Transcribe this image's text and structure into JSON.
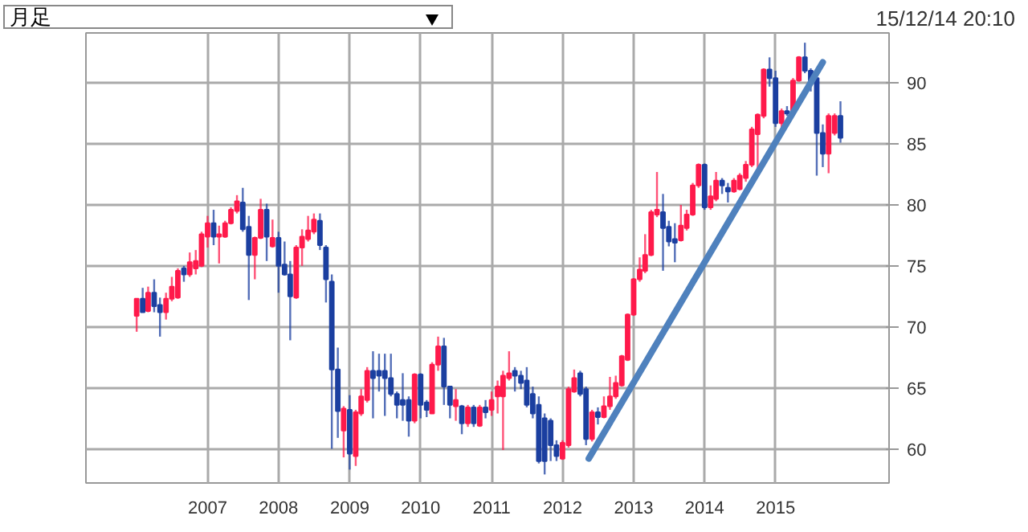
{
  "chart_data": {
    "type": "candlestick",
    "annotations": [
      "月足",
      "15/12/14 20:10"
    ],
    "x": [
      "2006-01",
      "2006-02",
      "2006-03",
      "2006-04",
      "2006-05",
      "2006-06",
      "2006-07",
      "2006-08",
      "2006-09",
      "2006-10",
      "2006-11",
      "2006-12",
      "2007-01",
      "2007-02",
      "2007-03",
      "2007-04",
      "2007-05",
      "2007-06",
      "2007-07",
      "2007-08",
      "2007-09",
      "2007-10",
      "2007-11",
      "2007-12",
      "2008-01",
      "2008-02",
      "2008-03",
      "2008-04",
      "2008-05",
      "2008-06",
      "2008-07",
      "2008-08",
      "2008-09",
      "2008-10",
      "2008-11",
      "2008-12",
      "2009-01",
      "2009-02",
      "2009-03",
      "2009-04",
      "2009-05",
      "2009-06",
      "2009-07",
      "2009-08",
      "2009-09",
      "2009-10",
      "2009-11",
      "2009-12",
      "2010-01",
      "2010-02",
      "2010-03",
      "2010-04",
      "2010-05",
      "2010-06",
      "2010-07",
      "2010-08",
      "2010-09",
      "2010-10",
      "2010-11",
      "2010-12",
      "2011-01",
      "2011-02",
      "2011-03",
      "2011-04",
      "2011-05",
      "2011-06",
      "2011-07",
      "2011-08",
      "2011-09",
      "2011-10",
      "2011-11",
      "2011-12",
      "2012-01",
      "2012-02",
      "2012-03",
      "2012-04",
      "2012-05",
      "2012-06",
      "2012-07",
      "2012-08",
      "2012-09",
      "2012-10",
      "2012-11",
      "2012-12",
      "2013-01",
      "2013-02",
      "2013-03",
      "2013-04",
      "2013-05",
      "2013-06",
      "2013-07",
      "2013-08",
      "2013-09",
      "2013-10",
      "2013-11",
      "2013-12",
      "2014-01",
      "2014-02",
      "2014-03",
      "2014-04",
      "2014-05",
      "2014-06",
      "2014-07",
      "2014-08",
      "2014-09",
      "2014-10",
      "2014-11",
      "2014-12",
      "2015-01",
      "2015-02",
      "2015-03",
      "2015-04",
      "2015-05",
      "2015-06",
      "2015-07",
      "2015-08",
      "2015-09",
      "2015-10",
      "2015-11",
      "2015-12"
    ],
    "ohlc": [
      [
        70.9,
        72.3,
        69.6,
        72.3
      ],
      [
        72.3,
        73.2,
        71.2,
        71.2
      ],
      [
        71.3,
        73.3,
        71.2,
        72.8
      ],
      [
        72.8,
        73.9,
        71.2,
        71.7
      ],
      [
        71.8,
        72.4,
        69.2,
        71.2
      ],
      [
        71.2,
        72.8,
        70.6,
        72.3
      ],
      [
        72.3,
        74.1,
        72.1,
        73.3
      ],
      [
        72.4,
        74.8,
        72.3,
        74.6
      ],
      [
        74.8,
        75.0,
        73.7,
        74.3
      ],
      [
        74.3,
        76.1,
        74.1,
        75.3
      ],
      [
        74.8,
        76.3,
        74.3,
        75.4
      ],
      [
        75.0,
        77.8,
        74.9,
        77.6
      ],
      [
        77.4,
        79.1,
        76.5,
        78.5
      ],
      [
        78.5,
        79.6,
        76.7,
        77.4
      ],
      [
        77.4,
        78.3,
        75.2,
        77.6
      ],
      [
        77.4,
        78.7,
        77.3,
        78.5
      ],
      [
        78.5,
        79.8,
        78.4,
        79.6
      ],
      [
        79.5,
        80.8,
        79.3,
        80.3
      ],
      [
        80.2,
        81.4,
        77.8,
        78.0
      ],
      [
        78.2,
        79.1,
        72.2,
        75.9
      ],
      [
        75.9,
        77.4,
        73.9,
        77.3
      ],
      [
        77.3,
        80.5,
        77.2,
        79.6
      ],
      [
        79.6,
        80.1,
        75.4,
        77.4
      ],
      [
        76.6,
        78.8,
        76.5,
        77.3
      ],
      [
        77.3,
        77.8,
        72.8,
        75.0
      ],
      [
        75.1,
        77.0,
        74.2,
        74.3
      ],
      [
        74.3,
        75.4,
        68.9,
        72.5
      ],
      [
        72.4,
        76.7,
        72.3,
        76.5
      ],
      [
        76.5,
        78.0,
        75.0,
        77.4
      ],
      [
        77.2,
        79.1,
        77.0,
        77.9
      ],
      [
        77.8,
        79.3,
        77.6,
        78.8
      ],
      [
        78.7,
        79.3,
        76.3,
        76.7
      ],
      [
        76.5,
        76.7,
        72.0,
        73.9
      ],
      [
        73.7,
        74.3,
        60.0,
        66.5
      ],
      [
        66.5,
        68.3,
        60.9,
        63.1
      ],
      [
        61.5,
        63.5,
        59.3,
        63.3
      ],
      [
        63.2,
        64.4,
        58.3,
        59.6
      ],
      [
        59.4,
        63.2,
        58.6,
        63.0
      ],
      [
        62.9,
        64.9,
        62.7,
        64.3
      ],
      [
        64.0,
        66.7,
        63.8,
        66.4
      ],
      [
        66.4,
        68.0,
        62.5,
        65.8
      ],
      [
        66.4,
        67.8,
        64.7,
        66.0
      ],
      [
        66.4,
        67.8,
        62.7,
        65.8
      ],
      [
        65.8,
        67.8,
        64.3,
        64.5
      ],
      [
        64.5,
        64.7,
        62.5,
        63.6
      ],
      [
        64.0,
        66.2,
        62.3,
        63.6
      ],
      [
        64.0,
        64.3,
        61.0,
        62.3
      ],
      [
        62.3,
        66.2,
        62.1,
        66.1
      ],
      [
        66.1,
        66.2,
        62.5,
        63.6
      ],
      [
        63.8,
        64.0,
        62.6,
        63.2
      ],
      [
        62.9,
        67.1,
        62.9,
        66.9
      ],
      [
        66.9,
        69.2,
        66.4,
        68.4
      ],
      [
        68.4,
        69.1,
        63.6,
        65.1
      ],
      [
        65.1,
        65.1,
        62.5,
        63.6
      ],
      [
        63.5,
        64.9,
        62.3,
        64.0
      ],
      [
        63.5,
        63.6,
        61.2,
        62.1
      ],
      [
        62.1,
        63.6,
        61.8,
        63.4
      ],
      [
        63.4,
        63.6,
        61.8,
        62.1
      ],
      [
        61.9,
        63.6,
        61.8,
        63.4
      ],
      [
        63.4,
        64.0,
        62.5,
        63.0
      ],
      [
        63.2,
        64.7,
        62.7,
        64.0
      ],
      [
        64.3,
        65.6,
        62.9,
        65.1
      ],
      [
        64.3,
        66.4,
        59.9,
        66.0
      ],
      [
        65.8,
        68.0,
        65.6,
        66.2
      ],
      [
        66.4,
        66.7,
        64.7,
        66.0
      ],
      [
        66.0,
        66.4,
        64.9,
        65.4
      ],
      [
        65.6,
        66.7,
        63.4,
        63.6
      ],
      [
        64.5,
        65.1,
        62.5,
        62.9
      ],
      [
        63.6,
        64.3,
        58.8,
        59.0
      ],
      [
        62.5,
        62.9,
        57.9,
        59.0
      ],
      [
        62.3,
        62.5,
        59.0,
        60.3
      ],
      [
        60.3,
        60.7,
        59.0,
        59.4
      ],
      [
        59.2,
        60.7,
        59.1,
        60.5
      ],
      [
        60.3,
        65.1,
        60.1,
        64.9
      ],
      [
        64.7,
        66.5,
        64.6,
        65.8
      ],
      [
        66.2,
        66.4,
        64.3,
        64.5
      ],
      [
        64.9,
        65.1,
        60.3,
        60.8
      ],
      [
        60.8,
        63.2,
        60.6,
        63.0
      ],
      [
        63.0,
        63.4,
        62.0,
        62.6
      ],
      [
        62.6,
        64.3,
        62.5,
        63.5
      ],
      [
        63.5,
        65.9,
        63.2,
        64.3
      ],
      [
        64.3,
        66.0,
        64.1,
        65.4
      ],
      [
        65.2,
        67.7,
        65.1,
        67.6
      ],
      [
        67.3,
        71.1,
        67.2,
        71.0
      ],
      [
        71.0,
        74.0,
        70.9,
        73.9
      ],
      [
        73.9,
        75.7,
        73.7,
        74.7
      ],
      [
        74.6,
        77.6,
        74.4,
        75.9
      ],
      [
        75.9,
        79.6,
        75.8,
        79.4
      ],
      [
        79.2,
        82.7,
        79.0,
        79.6
      ],
      [
        79.4,
        80.9,
        74.6,
        78.1
      ],
      [
        78.2,
        78.7,
        76.6,
        77.0
      ],
      [
        77.2,
        78.5,
        75.3,
        76.9
      ],
      [
        77.1,
        80.0,
        77.0,
        78.3
      ],
      [
        78.1,
        79.6,
        77.9,
        79.2
      ],
      [
        79.2,
        81.8,
        79.1,
        81.6
      ],
      [
        81.6,
        83.4,
        81.4,
        83.3
      ],
      [
        83.3,
        83.4,
        79.6,
        79.8
      ],
      [
        79.8,
        81.6,
        79.6,
        80.7
      ],
      [
        80.5,
        82.7,
        80.3,
        82.0
      ],
      [
        82.0,
        82.2,
        80.9,
        81.6
      ],
      [
        81.4,
        81.8,
        80.2,
        81.1
      ],
      [
        81.1,
        82.2,
        81.0,
        82.0
      ],
      [
        81.3,
        82.6,
        81.2,
        82.4
      ],
      [
        82.2,
        83.6,
        81.9,
        83.3
      ],
      [
        83.3,
        86.4,
        83.1,
        86.2
      ],
      [
        85.8,
        87.5,
        82.9,
        87.4
      ],
      [
        87.3,
        91.2,
        87.1,
        91.1
      ],
      [
        91.1,
        92.1,
        89.7,
        90.4
      ],
      [
        90.4,
        91.0,
        86.4,
        86.7
      ],
      [
        86.7,
        87.9,
        86.2,
        87.7
      ],
      [
        87.7,
        88.1,
        87.3,
        87.5
      ],
      [
        87.5,
        90.4,
        87.4,
        90.2
      ],
      [
        90.2,
        92.2,
        90.1,
        92.1
      ],
      [
        92.1,
        93.3,
        90.8,
        91.0
      ],
      [
        91.0,
        91.2,
        89.3,
        90.2
      ],
      [
        90.4,
        90.5,
        82.4,
        85.9
      ],
      [
        85.9,
        86.6,
        83.1,
        84.2
      ],
      [
        84.2,
        87.5,
        82.6,
        87.3
      ],
      [
        85.9,
        87.5,
        85.7,
        87.3
      ],
      [
        87.3,
        88.5,
        85.1,
        85.5
      ]
    ],
    "colors": [
      "#ff1a4b",
      "#1b3fa0",
      "#ff1a4b",
      "#1b3fa0",
      "#1b3fa0",
      "#ff1a4b",
      "#ff1a4b",
      "#ff1a4b",
      "#1b3fa0",
      "#ff1a4b",
      "#ff1a4b",
      "#ff1a4b",
      "#ff1a4b",
      "#1b3fa0",
      "#ff1a4b",
      "#ff1a4b",
      "#ff1a4b",
      "#ff1a4b",
      "#1b3fa0",
      "#1b3fa0",
      "#ff1a4b",
      "#ff1a4b",
      "#1b3fa0",
      "#ff1a4b",
      "#1b3fa0",
      "#1b3fa0",
      "#1b3fa0",
      "#ff1a4b",
      "#ff1a4b",
      "#ff1a4b",
      "#ff1a4b",
      "#1b3fa0",
      "#1b3fa0",
      "#1b3fa0",
      "#1b3fa0",
      "#ff1a4b",
      "#1b3fa0",
      "#ff1a4b",
      "#ff1a4b",
      "#ff1a4b",
      "#1b3fa0",
      "#1b3fa0",
      "#1b3fa0",
      "#1b3fa0",
      "#1b3fa0",
      "#1b3fa0",
      "#1b3fa0",
      "#ff1a4b",
      "#1b3fa0",
      "#1b3fa0",
      "#ff1a4b",
      "#ff1a4b",
      "#1b3fa0",
      "#1b3fa0",
      "#ff1a4b",
      "#1b3fa0",
      "#ff1a4b",
      "#1b3fa0",
      "#ff1a4b",
      "#1b3fa0",
      "#ff1a4b",
      "#ff1a4b",
      "#ff1a4b",
      "#ff1a4b",
      "#1b3fa0",
      "#1b3fa0",
      "#1b3fa0",
      "#1b3fa0",
      "#1b3fa0",
      "#1b3fa0",
      "#1b3fa0",
      "#1b3fa0",
      "#ff1a4b",
      "#ff1a4b",
      "#ff1a4b",
      "#1b3fa0",
      "#1b3fa0",
      "#ff1a4b",
      "#1b3fa0",
      "#ff1a4b",
      "#ff1a4b",
      "#ff1a4b",
      "#ff1a4b",
      "#ff1a4b",
      "#ff1a4b",
      "#ff1a4b",
      "#ff1a4b",
      "#ff1a4b",
      "#ff1a4b",
      "#1b3fa0",
      "#1b3fa0",
      "#1b3fa0",
      "#ff1a4b",
      "#ff1a4b",
      "#ff1a4b",
      "#ff1a4b",
      "#1b3fa0",
      "#ff1a4b",
      "#ff1a4b",
      "#1b3fa0",
      "#1b3fa0",
      "#ff1a4b",
      "#ff1a4b",
      "#ff1a4b",
      "#ff1a4b",
      "#ff1a4b",
      "#ff1a4b",
      "#1b3fa0",
      "#1b3fa0",
      "#ff1a4b",
      "#1b3fa0",
      "#ff1a4b",
      "#ff1a4b",
      "#1b3fa0",
      "#1b3fa0",
      "#1b3fa0",
      "#1b3fa0",
      "#ff1a4b",
      "#ff1a4b",
      "#1b3fa0"
    ],
    "series": [
      {
        "type": "line",
        "x": [
          "2012-05-15",
          "2015-09-01"
        ],
        "values": [
          59.2,
          91.7
        ],
        "color": "#4f81bd"
      }
    ],
    "xlim": [
      "2005-04-15",
      "2016-08-07"
    ],
    "xticks": [
      {
        "value": "2007-01-01",
        "label": "2007"
      },
      {
        "value": "2008-01-01",
        "label": "2008"
      },
      {
        "value": "2009-01-01",
        "label": "2009"
      },
      {
        "value": "2010-01-01",
        "label": "2010"
      },
      {
        "value": "2011-01-01",
        "label": "2011"
      },
      {
        "value": "2012-01-01",
        "label": "2012"
      },
      {
        "value": "2013-01-01",
        "label": "2013"
      },
      {
        "value": "2014-01-01",
        "label": "2014"
      },
      {
        "value": "2015-01-01",
        "label": "2015"
      }
    ],
    "ylim": [
      57.2,
      94.1
    ],
    "yticks": [
      60,
      65,
      70,
      75,
      80,
      85,
      90
    ],
    "grid": true
  }
}
